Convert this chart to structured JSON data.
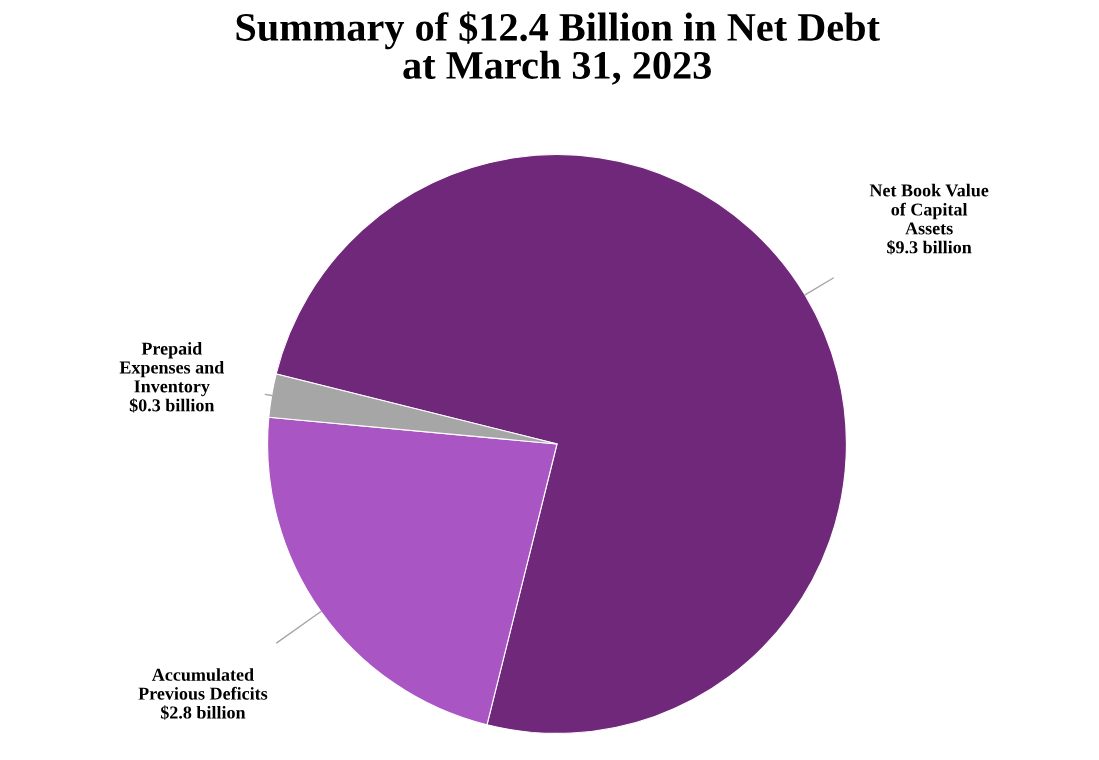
{
  "chart_data": {
    "type": "pie",
    "title": "Summary of $12.4 Billion in Net Debt\nat March 31, 2023",
    "categories": [
      "Net Book Value\nof Capital\nAssets",
      "Accumulated\nPrevious Deficits",
      "Prepaid\nExpenses and\nInventory"
    ],
    "values": [
      9.3,
      2.8,
      0.3
    ],
    "value_labels": [
      "$9.3 billion",
      "$2.8 billion",
      "$0.3 billion"
    ],
    "colors": [
      "#70287a",
      "#a955c4",
      "#a6a6a6"
    ],
    "legend": false
  }
}
